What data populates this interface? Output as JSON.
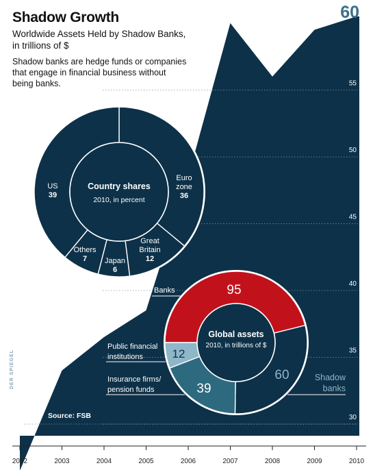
{
  "header": {
    "title": "Shadow Growth",
    "subtitle": "Worldwide Assets Held by Shadow Banks, in trillions of $",
    "note": "Shadow banks are hedge funds or companies that engage in financial business without being banks.",
    "peak_label": "60",
    "source": "Source: FSB",
    "credit": "DER SPIEGEL"
  },
  "colors": {
    "area": "#0d3148",
    "red": "#c1121c",
    "teal": "#2e6a7f",
    "light_blue": "#8fb6c9",
    "peak_text": "#3b6f88"
  },
  "chart_data": [
    {
      "type": "area",
      "title": "Shadow Growth",
      "subtitle": "Worldwide Assets Held by Shadow Banks, in trillions of $",
      "x": [
        2002,
        2003,
        2004,
        2005,
        2006,
        2007,
        2008,
        2009,
        2010
      ],
      "series": [
        {
          "values": [
            26,
            33.5,
            36,
            38,
            48,
            59.5,
            55.5,
            59,
            60
          ]
        }
      ],
      "ylim": [
        29,
        62
      ],
      "y_ticks": [
        30,
        35,
        40,
        45,
        50,
        55
      ],
      "x_ticks": [
        2002,
        2003,
        2004,
        2005,
        2006,
        2007,
        2008,
        2009,
        2010
      ],
      "grid": true,
      "annotation": "60"
    },
    {
      "type": "pie",
      "title": "Country shares",
      "subtitle": "2010, in percent",
      "slices": [
        {
          "label": "US",
          "value": 39
        },
        {
          "label": "Euro zone",
          "value": 36
        },
        {
          "label": "Great Britain",
          "value": 12
        },
        {
          "label": "Japan",
          "value": 6
        },
        {
          "label": "Others",
          "value": 7
        }
      ]
    },
    {
      "type": "pie",
      "title": "Global assets",
      "subtitle": "2010, in trillions of $",
      "slices": [
        {
          "label": "Banks",
          "value": 95
        },
        {
          "label": "Shadow banks",
          "value": 60
        },
        {
          "label": "Insurance firms/ pension funds",
          "value": 39
        },
        {
          "label": "Public financial institutions",
          "value": 12
        }
      ]
    }
  ]
}
